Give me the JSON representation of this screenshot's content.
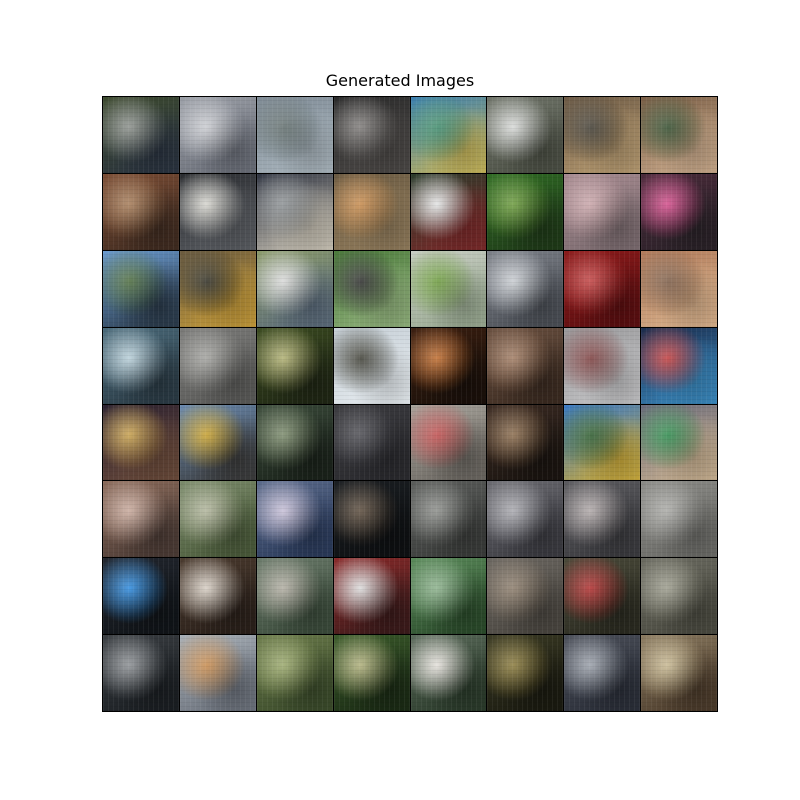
{
  "title": "Generated Images",
  "tiles": [
    {
      "a": "#3d4a2e",
      "b": "#8a8f8a",
      "c": "#2a3340"
    },
    {
      "a": "#9a9ea6",
      "b": "#c9cbd0",
      "c": "#6a6e78"
    },
    {
      "a": "#7f8b96",
      "b": "#5e6b6a",
      "c": "#a8b4bc"
    },
    {
      "a": "#2a2a2a",
      "b": "#7d7a78",
      "c": "#4b4846"
    },
    {
      "a": "#3a7fb0",
      "b": "#3c8a6a",
      "c": "#c6b55a"
    },
    {
      "a": "#6f7469",
      "b": "#d8dad8",
      "c": "#4b4f44"
    },
    {
      "a": "#6d5a45",
      "b": "#3e3a30",
      "c": "#b69a70"
    },
    {
      "a": "#7a5e46",
      "b": "#2f4a2a",
      "c": "#c9a98a"
    },
    {
      "a": "#7a4c34",
      "b": "#a57a55",
      "c": "#3f2b20"
    },
    {
      "a": "#2a2c30",
      "b": "#d7d6cf",
      "c": "#5a5d62"
    },
    {
      "a": "#2e3340",
      "b": "#8a8f92",
      "c": "#c8c2b4"
    },
    {
      "a": "#6a5a42",
      "b": "#c88a4a",
      "c": "#8f7a5a"
    },
    {
      "a": "#2a3a2a",
      "b": "#e4e6e6",
      "c": "#7a2a2a"
    },
    {
      "a": "#2f6b24",
      "b": "#6a9a3a",
      "c": "#1f3a18"
    },
    {
      "a": "#a68a90",
      "b": "#c9a4a8",
      "c": "#7a6a6e"
    },
    {
      "a": "#4a2a3a",
      "b": "#d54a8a",
      "c": "#2a2228"
    },
    {
      "a": "#6a9ad0",
      "b": "#4a6a3a",
      "c": "#2a3a4a"
    },
    {
      "a": "#6a5a3e",
      "b": "#2b2a20",
      "c": "#c49a3a"
    },
    {
      "a": "#8a9a6a",
      "b": "#dadada",
      "c": "#5a6a7a"
    },
    {
      "a": "#4a7a3a",
      "b": "#2a2a2a",
      "c": "#8fb07a"
    },
    {
      "a": "#c8cdc4",
      "b": "#6a9a3a",
      "c": "#98a890"
    },
    {
      "a": "#7b7f87",
      "b": "#c9cdd2",
      "c": "#4a4e55"
    },
    {
      "a": "#8a1a1a",
      "b": "#c24040",
      "c": "#5a0e10"
    },
    {
      "a": "#b07a5a",
      "b": "#7a5a44",
      "c": "#d8b08a"
    },
    {
      "a": "#4a6a7a",
      "b": "#b8d0da",
      "c": "#2a3a44"
    },
    {
      "a": "#7a7a78",
      "b": "#a0a09c",
      "c": "#5a5a58"
    },
    {
      "a": "#3a4a20",
      "b": "#b0b070",
      "c": "#1f2614"
    },
    {
      "a": "#c6cfd6",
      "b": "#3a3a30",
      "c": "#e4eaee"
    },
    {
      "a": "#3a1e10",
      "b": "#c06a2a",
      "c": "#1a100a"
    },
    {
      "a": "#6a5040",
      "b": "#a07a60",
      "c": "#3a2a20"
    },
    {
      "a": "#9a9a9c",
      "b": "#7a3a3a",
      "c": "#c2c2c4"
    },
    {
      "a": "#1a2a4a",
      "b": "#c23a3a",
      "c": "#3a8ac0"
    },
    {
      "a": "#2a2030",
      "b": "#c8a04a",
      "c": "#6a4a3a"
    },
    {
      "a": "#6a8ab0",
      "b": "#c8a02a",
      "c": "#3a3a3a"
    },
    {
      "a": "#3a4a3a",
      "b": "#7a8a6a",
      "c": "#1a221a"
    },
    {
      "a": "#3a3a3e",
      "b": "#4a4a50",
      "c": "#2a2a2e"
    },
    {
      "a": "#a8a49c",
      "b": "#c04a4a",
      "c": "#6a6660"
    },
    {
      "a": "#3a2a22",
      "b": "#8a6a4a",
      "c": "#1a1410"
    },
    {
      "a": "#3a7ac8",
      "b": "#2a5a2a",
      "c": "#c8a83a"
    },
    {
      "a": "#6a6a7a",
      "b": "#2a8a4a",
      "c": "#c8b090"
    },
    {
      "a": "#8a6a5a",
      "b": "#c8a89a",
      "c": "#4a3a34"
    },
    {
      "a": "#7a8a6a",
      "b": "#b0b49a",
      "c": "#4a5a3a"
    },
    {
      "a": "#5a6a8a",
      "b": "#c8c0d8",
      "c": "#2a3a5a"
    },
    {
      "a": "#1a1e22",
      "b": "#5a4a3a",
      "c": "#0e1012"
    },
    {
      "a": "#5a5c5a",
      "b": "#8a8c88",
      "c": "#3a3c3a"
    },
    {
      "a": "#6a6a70",
      "b": "#a8a8ae",
      "c": "#3a3a40"
    },
    {
      "a": "#5a5a5e",
      "b": "#b0a8a8",
      "c": "#3a3a3e"
    },
    {
      "a": "#8a8a86",
      "b": "#a8a8a4",
      "c": "#6a6a66"
    },
    {
      "a": "#22262e",
      "b": "#2a8ae0",
      "c": "#101418"
    },
    {
      "a": "#4a3a2e",
      "b": "#d8cfc4",
      "c": "#2a201a"
    },
    {
      "a": "#6a7a6a",
      "b": "#b0aca0",
      "c": "#3a4a3a"
    },
    {
      "a": "#8a2a2a",
      "b": "#dcdcdc",
      "c": "#3a1a1a"
    },
    {
      "a": "#5a8a5a",
      "b": "#8ab08a",
      "c": "#2a4a2a"
    },
    {
      "a": "#6a6660",
      "b": "#8a7a68",
      "c": "#4a4640"
    },
    {
      "a": "#4a4a3a",
      "b": "#b02a2a",
      "c": "#2a2a20"
    },
    {
      "a": "#6a6a60",
      "b": "#9a9a8a",
      "c": "#4a4a40"
    },
    {
      "a": "#3a3e42",
      "b": "#8a8e92",
      "c": "#1a1e22"
    },
    {
      "a": "#a8b0b8",
      "b": "#c88a4a",
      "c": "#6a707a"
    },
    {
      "a": "#6a7a4a",
      "b": "#9aa86a",
      "c": "#3a4a2a"
    },
    {
      "a": "#3a5a2a",
      "b": "#b0b07a",
      "c": "#1a2a14"
    },
    {
      "a": "#5a6a5a",
      "b": "#e6e2dc",
      "c": "#2a3a2a"
    },
    {
      "a": "#3a3a24",
      "b": "#8a7a3a",
      "c": "#1a1a10"
    },
    {
      "a": "#4a4e58",
      "b": "#9aa0aa",
      "c": "#2a2e38"
    },
    {
      "a": "#8a7a60",
      "b": "#c8b890",
      "c": "#4a3a2a"
    }
  ]
}
